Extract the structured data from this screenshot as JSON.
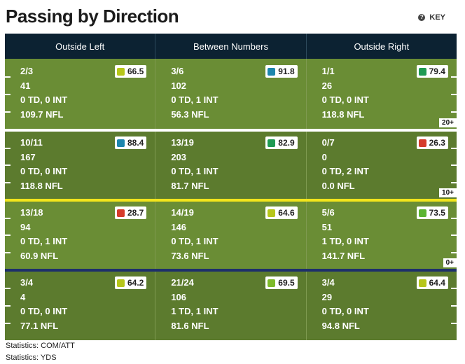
{
  "title": "Passing by Direction",
  "key_label": "KEY",
  "columns": [
    "Outside Left",
    "Between Numbers",
    "Outside Right"
  ],
  "rows": [
    {
      "yard_marker": "20+",
      "cells": [
        {
          "comp_att": "2/3",
          "yds": "41",
          "td_int": "0 TD, 0 INT",
          "rating": "109.7 NFL",
          "grade": "66.5",
          "grade_color": "#b6c61a"
        },
        {
          "comp_att": "3/6",
          "yds": "102",
          "td_int": "0 TD, 1 INT",
          "rating": "56.3 NFL",
          "grade": "91.8",
          "grade_color": "#1d86ad"
        },
        {
          "comp_att": "1/1",
          "yds": "26",
          "td_int": "0 TD, 0 INT",
          "rating": "118.8 NFL",
          "grade": "79.4",
          "grade_color": "#1f9a53"
        }
      ]
    },
    {
      "yard_marker": "10+",
      "cells": [
        {
          "comp_att": "10/11",
          "yds": "167",
          "td_int": "0 TD, 0 INT",
          "rating": "118.8 NFL",
          "grade": "88.4",
          "grade_color": "#1d86ad"
        },
        {
          "comp_att": "13/19",
          "yds": "203",
          "td_int": "0 TD, 1 INT",
          "rating": "81.7 NFL",
          "grade": "82.9",
          "grade_color": "#1f9a53"
        },
        {
          "comp_att": "0/7",
          "yds": "0",
          "td_int": "0 TD, 2 INT",
          "rating": "0.0 NFL",
          "grade": "26.3",
          "grade_color": "#d63b2b"
        }
      ]
    },
    {
      "yard_marker": "0+",
      "cells": [
        {
          "comp_att": "13/18",
          "yds": "94",
          "td_int": "0 TD, 1 INT",
          "rating": "60.9 NFL",
          "grade": "28.7",
          "grade_color": "#d63b2b"
        },
        {
          "comp_att": "14/19",
          "yds": "146",
          "td_int": "0 TD, 1 INT",
          "rating": "73.6 NFL",
          "grade": "64.6",
          "grade_color": "#b6c61a"
        },
        {
          "comp_att": "5/6",
          "yds": "51",
          "td_int": "1 TD, 0 INT",
          "rating": "141.7 NFL",
          "grade": "73.5",
          "grade_color": "#5bb531"
        }
      ]
    },
    {
      "yard_marker": "",
      "cells": [
        {
          "comp_att": "3/4",
          "yds": "4",
          "td_int": "0 TD, 0 INT",
          "rating": "77.1 NFL",
          "grade": "64.2",
          "grade_color": "#b6c61a"
        },
        {
          "comp_att": "21/24",
          "yds": "106",
          "td_int": "1 TD, 1 INT",
          "rating": "81.6 NFL",
          "grade": "69.5",
          "grade_color": "#7dba2a"
        },
        {
          "comp_att": "3/4",
          "yds": "29",
          "td_int": "0 TD, 0 INT",
          "rating": "94.8 NFL",
          "grade": "64.4",
          "grade_color": "#b6c61a"
        }
      ]
    }
  ],
  "divider_colors": [
    "#ffffff",
    "#f2e51c",
    "#1d2f6b"
  ],
  "field_colors": [
    "#6a8d35",
    "#5c7b2e"
  ],
  "footer": [
    "Statistics: COM/ATT",
    "Statistics: YDS"
  ]
}
